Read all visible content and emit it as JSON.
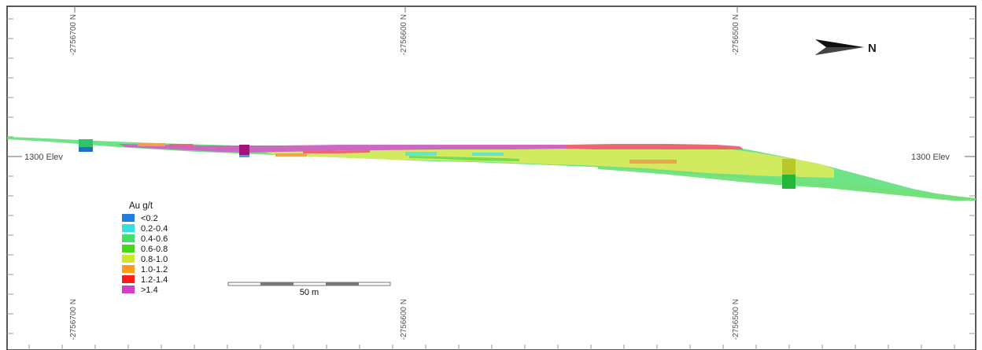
{
  "grid": {
    "top_labels": [
      "-2756700 N",
      "-2756600 N",
      "-2756500 N"
    ],
    "bottom_labels": [
      "-2756700 N",
      "-2756600 N",
      "-2756500 N"
    ],
    "elevation_label_left": "1300 Elev",
    "elevation_label_right": "1300 Elev"
  },
  "north_arrow": {
    "label": "N",
    "icon": "north-arrow-icon"
  },
  "legend": {
    "title": "Au g/t",
    "items": [
      {
        "label": "<0.2",
        "color": "#1f7fe0"
      },
      {
        "label": "0.2-0.4",
        "color": "#33e0e0"
      },
      {
        "label": "0.4-0.6",
        "color": "#3ee06a"
      },
      {
        "label": "0.6-0.8",
        "color": "#44d81c"
      },
      {
        "label": "0.8-1.0",
        "color": "#cde82a"
      },
      {
        "label": "1.0-1.2",
        "color": "#ff9a1a"
      },
      {
        "label": "1.2-1.4",
        "color": "#ff1a1a"
      },
      {
        "label": ">1.4",
        "color": "#d23ec4"
      }
    ]
  },
  "scale_bar": {
    "label": "50 m"
  }
}
